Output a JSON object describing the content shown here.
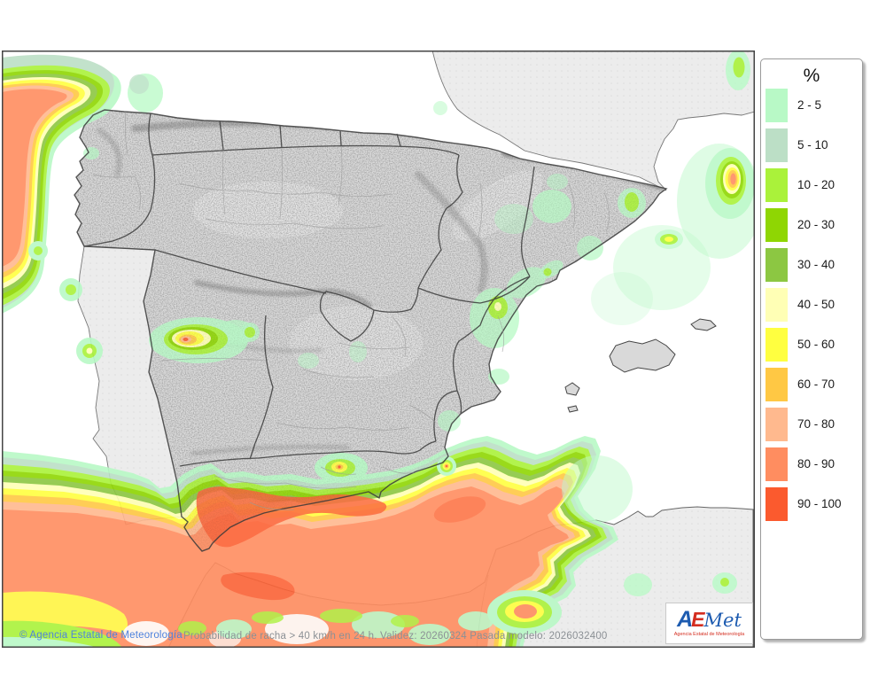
{
  "legend": {
    "title": "%",
    "items": [
      {
        "label": "2 - 5",
        "color": "#b8f9c6"
      },
      {
        "label": "5 - 10",
        "color": "#bcdfc6"
      },
      {
        "label": "10 - 20",
        "color": "#aaf23a"
      },
      {
        "label": "20 - 30",
        "color": "#8fd603"
      },
      {
        "label": "30 - 40",
        "color": "#8cc742"
      },
      {
        "label": "40 - 50",
        "color": "#ffffb5"
      },
      {
        "label": "50 - 60",
        "color": "#ffff40"
      },
      {
        "label": "60 - 70",
        "color": "#ffc844"
      },
      {
        "label": "70 - 80",
        "color": "#ffb98e"
      },
      {
        "label": "80 - 90",
        "color": "#ff8d60"
      },
      {
        "label": "90 - 100",
        "color": "#fb5a2e"
      }
    ]
  },
  "footer": {
    "copyright": "© Agencia Estatal de Meteorología",
    "info": "Probabilidad de racha > 40 km/h en 24 h. Validez: 20260324 Pasada modelo: 2026032400"
  },
  "logo": {
    "part_a": "A",
    "part_e": "E",
    "part_met": "Met",
    "caption": "Agencia Estatal de Meteorología"
  },
  "map_colors": {
    "sea": "#ffffff",
    "foreign_land": "#ececec",
    "spain_land": "#dadada",
    "coast_line": "#2e2e2e"
  }
}
